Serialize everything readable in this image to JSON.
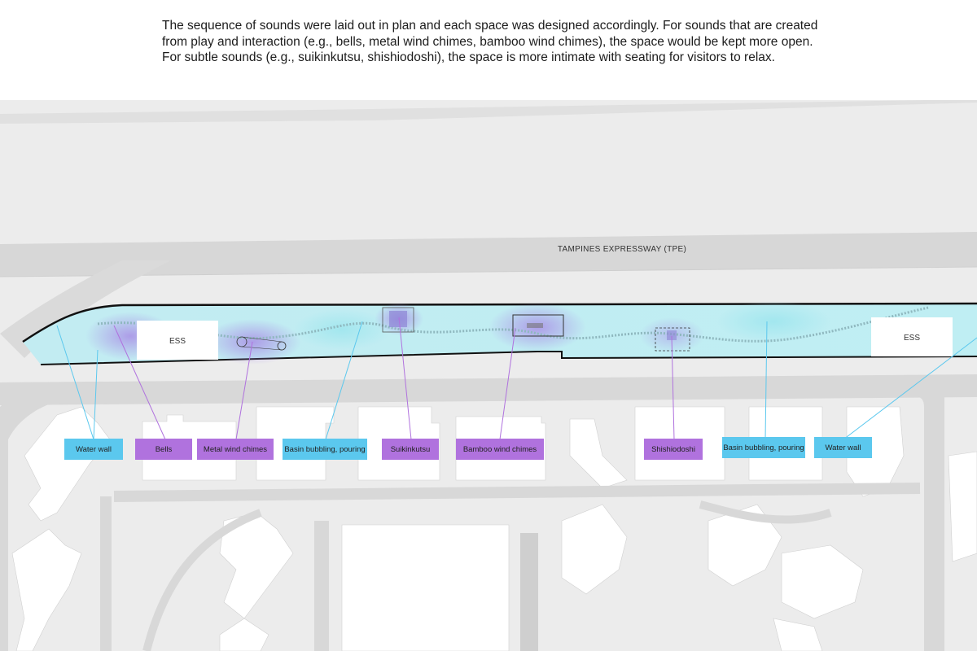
{
  "intro": "The sequence of sounds were laid out in plan and each space was designed accordingly. For sounds that are created from play and interaction (e.g., bells, metal wind chimes, bamboo wind chimes), the space would be kept more open. For subtle sounds (e.g., suikinkutsu, shishiodoshi), the space is more intimate with seating for visitors to relax.",
  "road_label": "TAMPINES EXPRESSWAY (TPE)",
  "ess_label_left": "ESS",
  "ess_label_right": "ESS",
  "colors": {
    "interaction": "#5bc8ee",
    "subtle": "#b072de",
    "road": "#d6d6d6",
    "ground": "#ececec"
  },
  "labels": [
    {
      "text": "Water wall",
      "category": "water"
    },
    {
      "text": "Bells",
      "category": "sound"
    },
    {
      "text": "Metal wind chimes",
      "category": "sound"
    },
    {
      "text": "Basin bubbling, pouring",
      "category": "water"
    },
    {
      "text": "Suikinkutsu",
      "category": "sound"
    },
    {
      "text": "Bamboo wind chimes",
      "category": "sound"
    },
    {
      "text": "Shishiodoshi",
      "category": "sound"
    },
    {
      "text": "Basin bubbling, pouring",
      "category": "water"
    },
    {
      "text": "Water wall",
      "category": "water"
    }
  ]
}
